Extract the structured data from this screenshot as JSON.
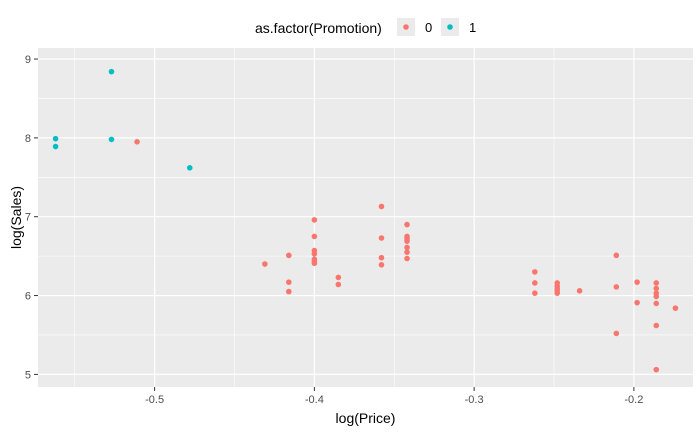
{
  "chart_data": {
    "type": "scatter",
    "xlabel": "log(Price)",
    "ylabel": "log(Sales)",
    "xlim": [
      -0.573,
      -0.163
    ],
    "ylim": [
      4.84,
      9.14
    ],
    "x_ticks": [
      -0.5,
      -0.4,
      -0.3,
      -0.2
    ],
    "x_tick_labels": [
      "-0.5",
      "-0.4",
      "-0.3",
      "-0.2"
    ],
    "y_ticks": [
      5,
      6,
      7,
      8,
      9
    ],
    "y_tick_labels": [
      "5",
      "6",
      "7",
      "8",
      "9"
    ],
    "grid": true,
    "legend": {
      "title": "as.factor(Promotion)",
      "placement": "top",
      "entries": [
        {
          "label": "0",
          "color": "#F8766D"
        },
        {
          "label": "1",
          "color": "#00BFC4"
        }
      ]
    },
    "series": [
      {
        "name": "0",
        "color": "#F8766D",
        "points": [
          [
            -0.511,
            7.95
          ],
          [
            -0.431,
            6.4
          ],
          [
            -0.416,
            6.51
          ],
          [
            -0.416,
            6.17
          ],
          [
            -0.416,
            6.05
          ],
          [
            -0.4,
            6.96
          ],
          [
            -0.4,
            6.75
          ],
          [
            -0.4,
            6.57
          ],
          [
            -0.4,
            6.53
          ],
          [
            -0.4,
            6.46
          ],
          [
            -0.4,
            6.43
          ],
          [
            -0.4,
            6.41
          ],
          [
            -0.385,
            6.23
          ],
          [
            -0.385,
            6.14
          ],
          [
            -0.358,
            7.13
          ],
          [
            -0.358,
            6.73
          ],
          [
            -0.358,
            6.48
          ],
          [
            -0.358,
            6.39
          ],
          [
            -0.342,
            6.9
          ],
          [
            -0.342,
            6.75
          ],
          [
            -0.342,
            6.72
          ],
          [
            -0.342,
            6.69
          ],
          [
            -0.342,
            6.61
          ],
          [
            -0.342,
            6.55
          ],
          [
            -0.342,
            6.47
          ],
          [
            -0.262,
            6.3
          ],
          [
            -0.262,
            6.16
          ],
          [
            -0.262,
            6.03
          ],
          [
            -0.248,
            6.16
          ],
          [
            -0.248,
            6.12
          ],
          [
            -0.248,
            6.09
          ],
          [
            -0.248,
            6.06
          ],
          [
            -0.248,
            6.03
          ],
          [
            -0.234,
            6.06
          ],
          [
            -0.211,
            6.51
          ],
          [
            -0.211,
            6.11
          ],
          [
            -0.211,
            5.52
          ],
          [
            -0.198,
            6.17
          ],
          [
            -0.198,
            5.91
          ],
          [
            -0.186,
            6.16
          ],
          [
            -0.186,
            6.09
          ],
          [
            -0.186,
            6.03
          ],
          [
            -0.186,
            5.99
          ],
          [
            -0.186,
            5.9
          ],
          [
            -0.186,
            5.62
          ],
          [
            -0.186,
            5.06
          ],
          [
            -0.174,
            5.84
          ]
        ]
      },
      {
        "name": "1",
        "color": "#00BFC4",
        "points": [
          [
            -0.562,
            7.99
          ],
          [
            -0.562,
            7.89
          ],
          [
            -0.527,
            8.84
          ],
          [
            -0.527,
            7.98
          ],
          [
            -0.478,
            7.62
          ]
        ]
      }
    ]
  }
}
